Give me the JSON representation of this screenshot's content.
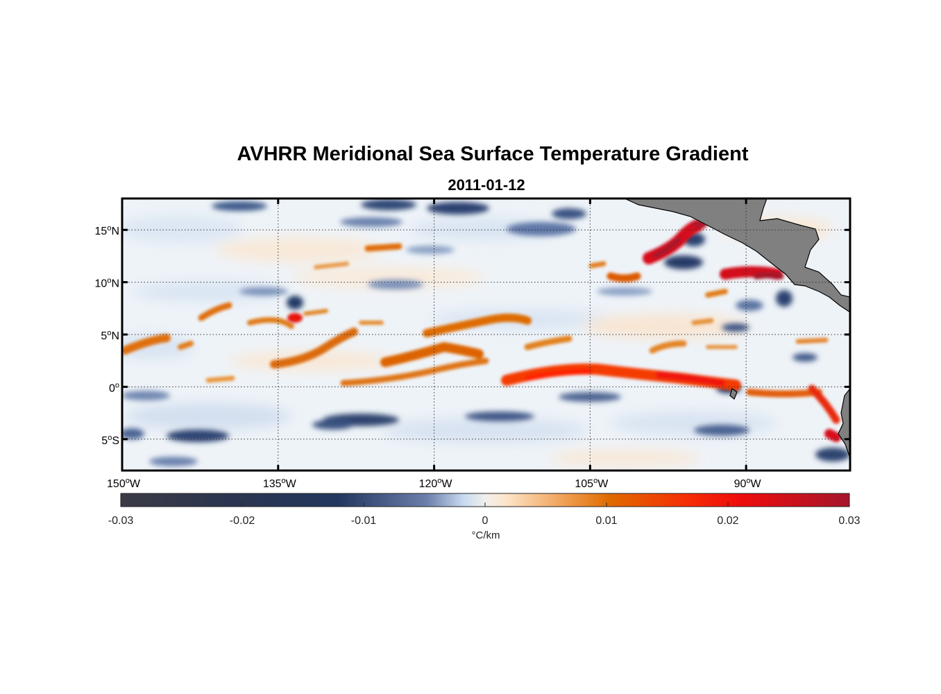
{
  "title": "AVHRR Meridional Sea Surface Temperature Gradient",
  "subtitle": "2011-01-12",
  "chart_data": {
    "type": "heatmap",
    "title": "AVHRR Meridional Sea Surface Temperature Gradient",
    "subtitle": "2011-01-12",
    "lon_range": [
      -150,
      -80
    ],
    "lat_range": [
      -8,
      18
    ],
    "lon_ticks": [
      {
        "value": -150,
        "label": "150",
        "suffix": "W"
      },
      {
        "value": -135,
        "label": "135",
        "suffix": "W"
      },
      {
        "value": -120,
        "label": "120",
        "suffix": "W"
      },
      {
        "value": -105,
        "label": "105",
        "suffix": "W"
      },
      {
        "value": -90,
        "label": "90",
        "suffix": "W"
      }
    ],
    "lat_ticks": [
      {
        "value": 15,
        "label": "15",
        "suffix": "N"
      },
      {
        "value": 10,
        "label": "10",
        "suffix": "N"
      },
      {
        "value": 5,
        "label": "5",
        "suffix": "N"
      },
      {
        "value": 0,
        "label": "0",
        "suffix": ""
      },
      {
        "value": -5,
        "label": "5",
        "suffix": "S"
      }
    ],
    "degree_symbol": "o",
    "grid": "dotted",
    "colorbar": {
      "range": [
        -0.03,
        0.03
      ],
      "ticks": [
        -0.03,
        -0.02,
        -0.01,
        0,
        0.01,
        0.02,
        0.03
      ],
      "tick_labels": [
        "-0.03",
        "-0.02",
        "-0.01",
        "0",
        "0.01",
        "0.02",
        "0.03"
      ],
      "unit": "°C/km",
      "colors": [
        "#3a3a45",
        "#243558",
        "#5a6f9c",
        "#d2e1f2",
        "#ffe8cc",
        "#e07a10",
        "#ff1a00",
        "#a8122a"
      ]
    },
    "features": [
      {
        "name": "equatorial-front",
        "sign": "positive",
        "lon": [
          -125,
          -92
        ],
        "lat": [
          0.2,
          1.5
        ],
        "max": 0.02
      },
      {
        "name": "front-3N",
        "sign": "positive",
        "lon": [
          -123,
          -116
        ],
        "lat": [
          2,
          3.5
        ],
        "max": 0.012
      },
      {
        "name": "front-5N-west",
        "sign": "positive",
        "lon": [
          -150,
          -140
        ],
        "lat": [
          3.5,
          4.5
        ],
        "max": 0.011
      },
      {
        "name": "front-gulf-tehuantepec",
        "sign": "positive",
        "lon": [
          -97,
          -93
        ],
        "lat": [
          11.5,
          15.5
        ],
        "max": 0.03
      },
      {
        "name": "front-gulf-papagayo",
        "sign": "positive",
        "lon": [
          -90,
          -87
        ],
        "lat": [
          10.5,
          11.5
        ],
        "max": 0.03
      },
      {
        "name": "eddy-7N",
        "sign": "negative",
        "lon": [
          -134.5,
          -133.5
        ],
        "lat": [
          7.5,
          8.5
        ],
        "min": -0.025
      },
      {
        "name": "south-minimum",
        "sign": "negative",
        "lon": [
          -128,
          -122
        ],
        "lat": [
          -4,
          -3
        ],
        "min": -0.02
      }
    ]
  },
  "colors": {
    "land": "#808080",
    "coast": "#000000",
    "frame": "#000000"
  }
}
